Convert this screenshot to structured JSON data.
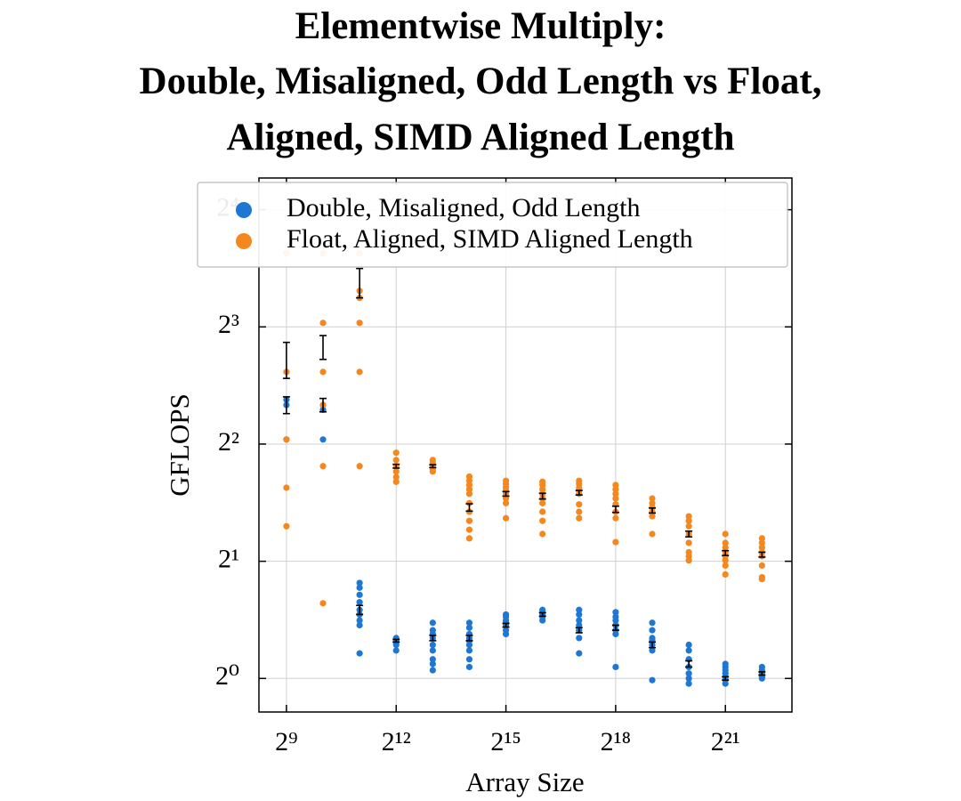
{
  "chart_data": {
    "type": "scatter",
    "title": [
      "Elementwise Multiply:",
      "Double, Misaligned, Odd Length vs Float,",
      "Aligned, SIMD Aligned Length"
    ],
    "xlabel": "Array Size",
    "ylabel": "GFLOPS",
    "xscale": "log2",
    "yscale": "log2",
    "grid": true,
    "legend": "upper left",
    "xlim": [
      304,
      7400000
    ],
    "ylim": [
      0.82,
      19.3
    ],
    "xticks": [
      {
        "value": 512,
        "label": "2⁹"
      },
      {
        "value": 4096,
        "label": "2¹²"
      },
      {
        "value": 32768,
        "label": "2¹⁵"
      },
      {
        "value": 262144,
        "label": "2¹⁸"
      },
      {
        "value": 2097152,
        "label": "2²¹"
      }
    ],
    "yticks": [
      {
        "value": 1,
        "label": "2⁰"
      },
      {
        "value": 2,
        "label": "2¹"
      },
      {
        "value": 4,
        "label": "2²"
      },
      {
        "value": 8,
        "label": "2³"
      },
      {
        "value": 16,
        "label": "2⁴"
      }
    ],
    "x": [
      512,
      1024,
      2048,
      4096,
      8192,
      16384,
      32768,
      65536,
      131072,
      262144,
      524288,
      1048576,
      2097152,
      4194304
    ],
    "series": [
      {
        "name": "Double, Misaligned, Odd Length",
        "color": "#1f77d4",
        "values": [
          [
            4.11,
            5.04,
            5.2
          ],
          [
            4.11,
            5.04,
            4.9
          ],
          [
            1.76,
            1.71,
            1.64,
            1.57,
            1.5,
            1.46,
            1.41,
            1.37,
            1.16
          ],
          [
            1.27,
            1.25,
            1.24,
            1.22,
            1.18
          ],
          [
            1.39,
            1.33,
            1.3,
            1.27,
            1.22,
            1.18,
            1.12,
            1.09,
            1.05
          ],
          [
            1.39,
            1.35,
            1.3,
            1.27,
            1.25,
            1.22,
            1.18,
            1.12,
            1.07
          ],
          [
            1.46,
            1.44,
            1.41,
            1.39,
            1.37,
            1.33,
            1.3
          ],
          [
            1.5,
            1.48,
            1.46,
            1.44,
            1.41
          ],
          [
            1.5,
            1.46,
            1.41,
            1.37,
            1.33,
            1.27,
            1.16
          ],
          [
            1.48,
            1.44,
            1.41,
            1.37,
            1.33,
            1.3,
            1.07
          ],
          [
            1.39,
            1.33,
            1.27,
            1.25,
            1.22,
            1.18,
            0.99
          ],
          [
            1.22,
            1.18,
            1.12,
            1.07,
            1.03,
            1.0,
            0.97
          ],
          [
            1.09,
            1.07,
            1.05,
            1.03,
            1.01,
            0.99,
            0.97
          ],
          [
            1.07,
            1.05,
            1.03,
            1.01,
            1.0
          ]
        ],
        "means": [
          5.04,
          5.04,
          1.5,
          1.25,
          1.27,
          1.27,
          1.37,
          1.46,
          1.33,
          1.35,
          1.22,
          1.09,
          1.0,
          1.03
        ],
        "errors": [
          0.25,
          0.2,
          0.04,
          0.01,
          0.02,
          0.02,
          0.015,
          0.015,
          0.02,
          0.02,
          0.02,
          0.02,
          0.01,
          0.01
        ]
      },
      {
        "name": "Float, Aligned, SIMD Aligned Length",
        "color": "#f5871f",
        "values": [
          [
            12.36,
            6.13,
            4.11,
            3.09,
            2.46
          ],
          [
            12.36,
            8.19,
            6.13,
            5.04,
            3.51,
            1.56
          ],
          [
            12.36,
            9.9,
            9.5,
            8.19,
            6.13,
            3.51
          ],
          [
            3.8,
            3.64,
            3.51,
            3.4,
            3.29,
            3.2
          ],
          [
            3.64,
            3.58,
            3.51,
            3.45,
            3.4
          ],
          [
            3.3,
            3.22,
            3.14,
            3.06,
            2.98,
            2.82,
            2.68,
            2.54,
            2.41,
            2.29
          ],
          [
            3.22,
            3.16,
            3.1,
            3.04,
            2.98,
            2.9,
            2.82,
            2.58
          ],
          [
            3.2,
            3.14,
            3.06,
            2.98,
            2.9,
            2.82,
            2.68,
            2.54,
            2.35
          ],
          [
            3.22,
            3.16,
            3.09,
            3.04,
            2.98,
            2.8,
            2.68,
            2.58
          ],
          [
            3.14,
            3.06,
            2.98,
            2.9,
            2.8,
            2.68,
            2.58,
            2.24
          ],
          [
            2.9,
            2.82,
            2.75,
            2.68,
            2.61,
            2.35
          ],
          [
            2.61,
            2.54,
            2.46,
            2.35,
            2.23,
            2.11,
            2.06,
            2.01
          ],
          [
            2.35,
            2.23,
            2.17,
            2.11,
            2.06,
            2.01,
            1.95,
            1.85
          ],
          [
            2.29,
            2.23,
            2.17,
            2.11,
            2.06,
            1.95,
            1.82,
            1.8
          ]
        ],
        "means": [
          6.6,
          7.1,
          10.4,
          3.51,
          3.51,
          2.75,
          2.98,
          2.94,
          3.0,
          2.72,
          2.7,
          2.35,
          2.1,
          2.08
        ],
        "errors": [
          0.7,
          0.5,
          0.9,
          0.04,
          0.03,
          0.06,
          0.04,
          0.05,
          0.04,
          0.05,
          0.04,
          0.04,
          0.03,
          0.03
        ]
      }
    ]
  }
}
